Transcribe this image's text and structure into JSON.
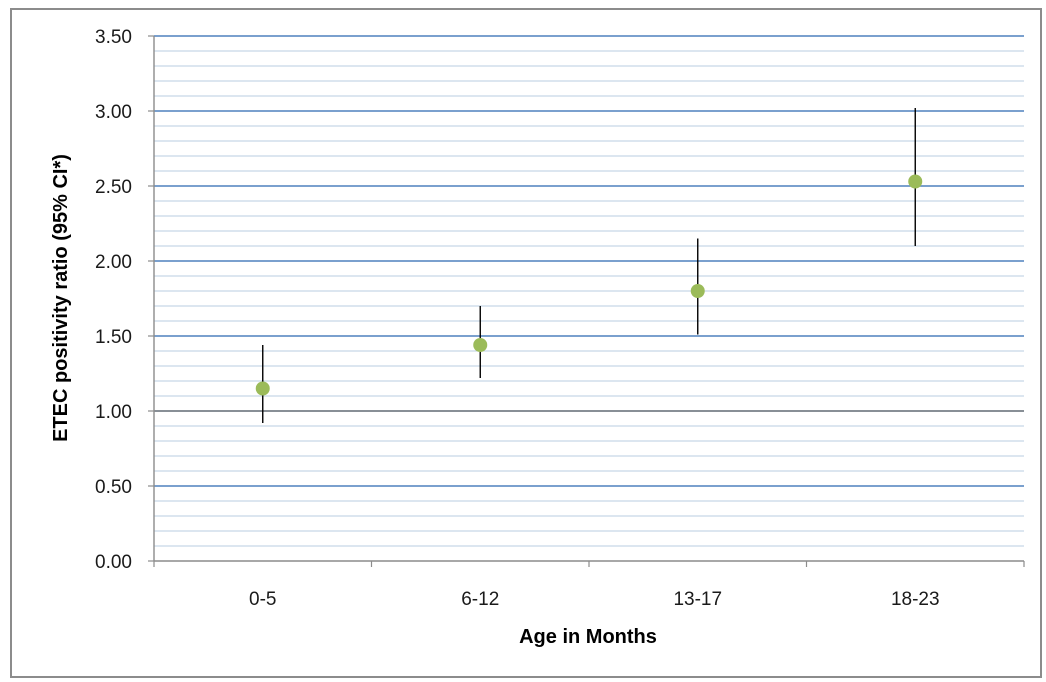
{
  "chart_data": {
    "type": "scatter",
    "xlabel": "Age in Months",
    "ylabel": "ETEC positivity ratio (95% CI*)",
    "categories": [
      "0-5",
      "6-12",
      "13-17",
      "18-23"
    ],
    "values": [
      1.15,
      1.44,
      1.8,
      2.53
    ],
    "ci_lower": [
      0.92,
      1.22,
      1.51,
      2.1
    ],
    "ci_upper": [
      1.44,
      1.7,
      2.15,
      3.02
    ],
    "ylim": [
      0,
      3.5
    ],
    "y_ticks": [
      "0.00",
      "0.50",
      "1.00",
      "1.50",
      "2.00",
      "2.50",
      "3.00",
      "3.50"
    ],
    "y_tick_values": [
      0,
      0.5,
      1.0,
      1.5,
      2.0,
      2.5,
      3.0,
      3.5
    ],
    "minor_grid_step": 0.1,
    "grid": true,
    "reference_line": 1.0,
    "colors": {
      "marker": "#9bbb59",
      "error_bar": "#000000",
      "grid_minor": "#b9cde0",
      "grid_major": "#4f81bd",
      "reference": "#7f7f7f",
      "axis": "#8c8c8c"
    }
  }
}
